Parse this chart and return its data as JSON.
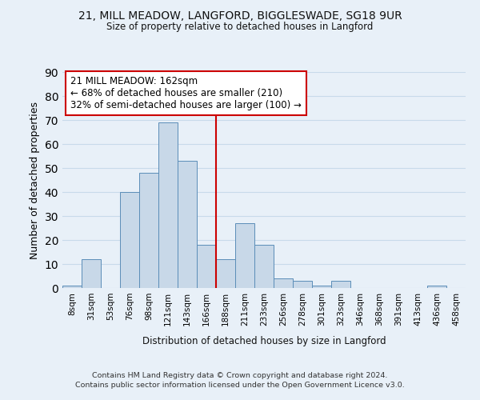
{
  "title": "21, MILL MEADOW, LANGFORD, BIGGLESWADE, SG18 9UR",
  "subtitle": "Size of property relative to detached houses in Langford",
  "xlabel": "Distribution of detached houses by size in Langford",
  "ylabel": "Number of detached properties",
  "bin_labels": [
    "8sqm",
    "31sqm",
    "53sqm",
    "76sqm",
    "98sqm",
    "121sqm",
    "143sqm",
    "166sqm",
    "188sqm",
    "211sqm",
    "233sqm",
    "256sqm",
    "278sqm",
    "301sqm",
    "323sqm",
    "346sqm",
    "368sqm",
    "391sqm",
    "413sqm",
    "436sqm",
    "458sqm"
  ],
  "bar_values": [
    1,
    12,
    0,
    40,
    48,
    69,
    53,
    18,
    12,
    27,
    18,
    4,
    3,
    1,
    3,
    0,
    0,
    0,
    0,
    1,
    0
  ],
  "bar_color": "#c8d8e8",
  "bar_edge_color": "#5b8db8",
  "grid_color": "#c8daea",
  "background_color": "#e8f0f8",
  "vline_color": "#cc0000",
  "annotation_title": "21 MILL MEADOW: 162sqm",
  "annotation_line1": "← 68% of detached houses are smaller (210)",
  "annotation_line2": "32% of semi-detached houses are larger (100) →",
  "annotation_box_color": "#ffffff",
  "annotation_box_edge": "#cc0000",
  "footer1": "Contains HM Land Registry data © Crown copyright and database right 2024.",
  "footer2": "Contains public sector information licensed under the Open Government Licence v3.0.",
  "ylim": [
    0,
    90
  ],
  "yticks": [
    0,
    10,
    20,
    30,
    40,
    50,
    60,
    70,
    80,
    90
  ],
  "vline_pos": 7.5
}
